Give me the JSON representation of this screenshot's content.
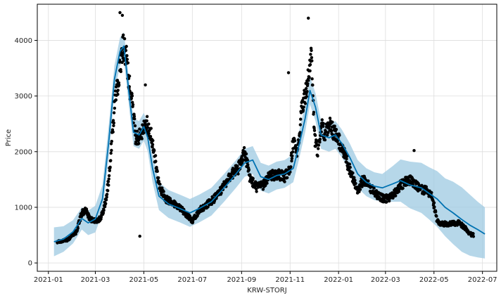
{
  "chart_data": {
    "type": "line",
    "title": "",
    "xlabel": "KRW-STORJ",
    "ylabel": "Price",
    "grid": true,
    "legend": "none",
    "x_range": [
      "2020-12-18",
      "2022-07-19"
    ],
    "y_range": [
      -150,
      4650
    ],
    "x_ticks": [
      "2021-01",
      "2021-03",
      "2021-05",
      "2021-07",
      "2021-09",
      "2021-11",
      "2022-01",
      "2022-03",
      "2022-05",
      "2022-07"
    ],
    "y_ticks": [
      0,
      1000,
      2000,
      3000,
      4000
    ],
    "colors": {
      "forecast_line": "#0072B2",
      "interval_fill": "#9ECAE1",
      "observed_points": "#000000",
      "grid": "#dddddd"
    },
    "forecast": {
      "dates": [
        "2021-01-08",
        "2021-01-20",
        "2021-02-01",
        "2021-02-12",
        "2021-02-20",
        "2021-03-01",
        "2021-03-10",
        "2021-03-18",
        "2021-03-25",
        "2021-04-01",
        "2021-04-06",
        "2021-04-12",
        "2021-04-18",
        "2021-04-25",
        "2021-05-01",
        "2021-05-06",
        "2021-05-12",
        "2021-05-20",
        "2021-06-01",
        "2021-06-15",
        "2021-06-28",
        "2021-07-10",
        "2021-07-25",
        "2021-08-10",
        "2021-08-25",
        "2021-09-05",
        "2021-09-15",
        "2021-09-25",
        "2021-10-05",
        "2021-10-15",
        "2021-10-25",
        "2021-11-05",
        "2021-11-12",
        "2021-11-20",
        "2021-11-26",
        "2021-12-03",
        "2021-12-10",
        "2021-12-20",
        "2021-12-28",
        "2022-01-05",
        "2022-01-15",
        "2022-01-25",
        "2022-02-05",
        "2022-02-15",
        "2022-02-25",
        "2022-03-10",
        "2022-03-20",
        "2022-04-01",
        "2022-04-15",
        "2022-04-25",
        "2022-05-05",
        "2022-05-15",
        "2022-05-25",
        "2022-06-05",
        "2022-06-15",
        "2022-06-25",
        "2022-07-04"
      ],
      "yhat": [
        380,
        430,
        560,
        800,
        720,
        790,
        1150,
        2200,
        3300,
        3800,
        3900,
        3100,
        2350,
        2300,
        2450,
        2250,
        1700,
        1200,
        1060,
        980,
        900,
        980,
        1100,
        1350,
        1600,
        1800,
        1850,
        1550,
        1500,
        1570,
        1600,
        1700,
        2100,
        2600,
        3100,
        2800,
        2300,
        2250,
        2300,
        2150,
        1900,
        1600,
        1450,
        1380,
        1350,
        1420,
        1480,
        1400,
        1350,
        1250,
        1150,
        1000,
        900,
        780,
        680,
        600,
        520
      ],
      "lower": [
        120,
        200,
        350,
        600,
        500,
        550,
        900,
        1900,
        3050,
        3550,
        3650,
        2850,
        2100,
        2050,
        2200,
        2000,
        1450,
        950,
        810,
        730,
        650,
        730,
        850,
        1100,
        1350,
        1550,
        1600,
        1300,
        1250,
        1320,
        1350,
        1450,
        1850,
        2350,
        2850,
        2550,
        2050,
        2000,
        2050,
        1900,
        1650,
        1350,
        1200,
        1130,
        1100,
        1100,
        1100,
        980,
        900,
        780,
        650,
        480,
        340,
        200,
        130,
        100,
        80
      ],
      "upper": [
        640,
        660,
        770,
        1000,
        940,
        1030,
        1400,
        2500,
        3550,
        4050,
        4150,
        3350,
        2600,
        2550,
        2700,
        2500,
        1950,
        1450,
        1310,
        1230,
        1150,
        1230,
        1350,
        1600,
        1850,
        2050,
        2100,
        1800,
        1750,
        1820,
        1850,
        1950,
        2350,
        2850,
        3350,
        3050,
        2550,
        2500,
        2550,
        2400,
        2150,
        1850,
        1700,
        1630,
        1600,
        1740,
        1860,
        1820,
        1800,
        1720,
        1650,
        1520,
        1460,
        1360,
        1230,
        1100,
        1000
      ]
    },
    "observed": {
      "anchor_dates": [
        "2021-01-12",
        "2021-01-25",
        "2021-02-05",
        "2021-02-12",
        "2021-02-17",
        "2021-02-22",
        "2021-03-01",
        "2021-03-08",
        "2021-03-14",
        "2021-03-18",
        "2021-03-25",
        "2021-04-01",
        "2021-04-05",
        "2021-04-09",
        "2021-04-13",
        "2021-04-17",
        "2021-04-21",
        "2021-04-26",
        "2021-05-01",
        "2021-05-05",
        "2021-05-10",
        "2021-05-14",
        "2021-05-20",
        "2021-05-28",
        "2021-06-05",
        "2021-06-15",
        "2021-06-25",
        "2021-07-01",
        "2021-07-10",
        "2021-07-20",
        "2021-08-01",
        "2021-08-10",
        "2021-08-20",
        "2021-08-28",
        "2021-09-05",
        "2021-09-12",
        "2021-09-20",
        "2021-09-28",
        "2021-10-05",
        "2021-10-15",
        "2021-10-25",
        "2021-11-01",
        "2021-11-05",
        "2021-11-10",
        "2021-11-15",
        "2021-11-20",
        "2021-11-25",
        "2021-11-28",
        "2021-12-02",
        "2021-12-06",
        "2021-12-10",
        "2021-12-15",
        "2021-12-20",
        "2021-12-28",
        "2022-01-05",
        "2022-01-12",
        "2022-01-20",
        "2022-01-25",
        "2022-02-01",
        "2022-02-10",
        "2022-02-20",
        "2022-03-01",
        "2022-03-10",
        "2022-03-20",
        "2022-04-01",
        "2022-04-05",
        "2022-04-12",
        "2022-04-20",
        "2022-04-28",
        "2022-05-05",
        "2022-05-10",
        "2022-05-20",
        "2022-06-01",
        "2022-06-10",
        "2022-06-15",
        "2022-06-20"
      ],
      "anchor_values": [
        370,
        420,
        550,
        900,
        950,
        800,
        750,
        800,
        1100,
        1500,
        2800,
        3500,
        3900,
        3700,
        3200,
        2800,
        2200,
        2300,
        2400,
        2500,
        2300,
        2000,
        1400,
        1150,
        1100,
        1000,
        850,
        750,
        950,
        1050,
        1200,
        1400,
        1600,
        1700,
        2000,
        1500,
        1350,
        1400,
        1550,
        1600,
        1550,
        1650,
        2200,
        1900,
        2700,
        3000,
        3500,
        3700,
        2200,
        2000,
        2500,
        2300,
        2500,
        2300,
        2100,
        1800,
        1500,
        1300,
        1500,
        1350,
        1200,
        1150,
        1200,
        1400,
        1500,
        1450,
        1350,
        1300,
        1250,
        750,
        700,
        700,
        720,
        620,
        520,
        500
      ],
      "outliers": [
        {
          "date": "2021-04-01",
          "value": 4500
        },
        {
          "date": "2021-04-04",
          "value": 4450
        },
        {
          "date": "2021-05-03",
          "value": 3200
        },
        {
          "date": "2021-10-30",
          "value": 3420
        },
        {
          "date": "2021-11-24",
          "value": 4400
        },
        {
          "date": "2022-04-06",
          "value": 2020
        },
        {
          "date": "2021-04-26",
          "value": 480
        }
      ]
    }
  }
}
